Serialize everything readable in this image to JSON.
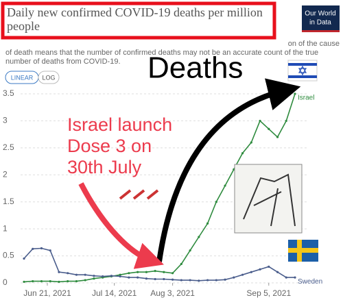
{
  "chart_data": {
    "type": "line",
    "title": [
      "Daily new confirmed COVID-19 deaths per million",
      "people"
    ],
    "subtitle": [
      "on of the cause",
      "of death means that the number of confirmed deaths may not be an accurate count of the true",
      "number of deaths from COVID-19."
    ],
    "logo": [
      "Our World",
      "in Data"
    ],
    "scale_buttons": [
      "LINEAR",
      "LOG"
    ],
    "annotations": [
      "Deaths",
      "Israel launch",
      "Dose 3 on",
      "30th July"
    ],
    "x": [
      "2021-06-13",
      "2021-06-16",
      "2021-06-19",
      "2021-06-22",
      "2021-06-25",
      "2021-06-28",
      "2021-07-01",
      "2021-07-04",
      "2021-07-07",
      "2021-07-10",
      "2021-07-13",
      "2021-07-16",
      "2021-07-19",
      "2021-07-22",
      "2021-07-25",
      "2021-07-28",
      "2021-07-31",
      "2021-08-03",
      "2021-08-06",
      "2021-08-09",
      "2021-08-12",
      "2021-08-15",
      "2021-08-18",
      "2021-08-21",
      "2021-08-24",
      "2021-08-27",
      "2021-08-30",
      "2021-09-02",
      "2021-09-05",
      "2021-09-08",
      "2021-09-11",
      "2021-09-14"
    ],
    "xlim": [
      "2021-06-13",
      "2021-09-14"
    ],
    "xticks": [
      {
        "value": "2021-06-21",
        "label": "Jun 21, 2021"
      },
      {
        "value": "2021-07-14",
        "label": "Jul 14, 2021"
      },
      {
        "value": "2021-08-03",
        "label": "Aug 3, 2021"
      },
      {
        "value": "2021-09-05",
        "label": "Sep 5, 2021"
      }
    ],
    "ylim": [
      0,
      3.5
    ],
    "yticks": [
      0,
      0.5,
      1,
      1.5,
      2,
      2.5,
      3,
      3.5
    ],
    "grid": true,
    "series": [
      {
        "name": "Israel",
        "color": "#2e8b3e",
        "values": [
          0.02,
          0.03,
          0.03,
          0.03,
          0.02,
          0.03,
          0.03,
          0.05,
          0.08,
          0.1,
          0.12,
          0.15,
          0.18,
          0.2,
          0.2,
          0.22,
          0.2,
          0.18,
          0.35,
          0.6,
          0.85,
          1.1,
          1.5,
          1.8,
          2.1,
          2.4,
          2.6,
          3.0,
          2.85,
          2.7,
          3.0,
          3.5
        ]
      },
      {
        "name": "Sweden",
        "color": "#4a5d8c",
        "values": [
          0.45,
          0.63,
          0.64,
          0.6,
          0.2,
          0.18,
          0.15,
          0.15,
          0.13,
          0.12,
          0.13,
          0.12,
          0.1,
          0.1,
          0.08,
          0.07,
          0.07,
          0.06,
          0.05,
          0.05,
          0.04,
          0.05,
          0.05,
          0.06,
          0.1,
          0.15,
          0.2,
          0.25,
          0.3,
          0.2,
          0.1,
          0.1
        ]
      }
    ]
  }
}
